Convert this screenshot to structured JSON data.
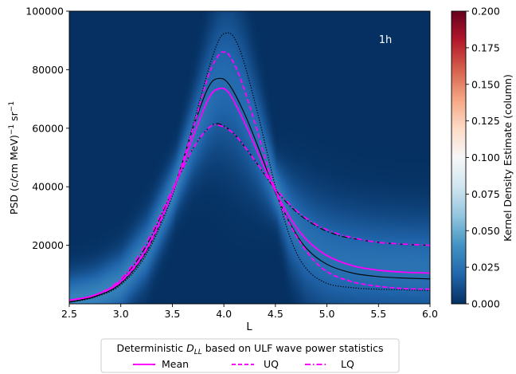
{
  "chart_data": {
    "type": "heatmap",
    "annotation": "1h",
    "xlabel": "L",
    "ylabel_parts": [
      "PSD (c/cm MeV)",
      "−1",
      " sr",
      "−1"
    ],
    "xlim": [
      2.5,
      6.0
    ],
    "ylim": [
      0,
      100000
    ],
    "xticks": [
      2.5,
      3.0,
      3.5,
      4.0,
      4.5,
      5.0,
      5.5,
      6.0
    ],
    "xtick_labels": [
      "2.5",
      "3.0",
      "3.5",
      "4.0",
      "4.5",
      "5.0",
      "5.5",
      "6.0"
    ],
    "yticks": [
      20000,
      40000,
      60000,
      80000,
      100000
    ],
    "ytick_labels": [
      "20000",
      "40000",
      "60000",
      "80000",
      "100000"
    ],
    "colorbar": {
      "label": "Kernel Density Estimate (column)",
      "range": [
        0.0,
        0.2
      ],
      "ticks": [
        0.0,
        0.025,
        0.05,
        0.075,
        0.1,
        0.125,
        0.15,
        0.175,
        0.2
      ],
      "tick_labels": [
        "0.000",
        "0.025",
        "0.050",
        "0.075",
        "0.100",
        "0.125",
        "0.150",
        "0.175",
        "0.200"
      ],
      "colormap": "RdBu_r"
    },
    "legend": {
      "title_parts": [
        "Deterministic ",
        "D",
        "LL",
        " based on ULF wave power statistics"
      ],
      "placement": "below",
      "entries": [
        {
          "label": "Mean",
          "style": "solid",
          "color": "#ff00ff"
        },
        {
          "label": "UQ",
          "style": "dashed",
          "color": "#ff00ff"
        },
        {
          "label": "LQ",
          "style": "dashdot",
          "color": "#ff00ff"
        }
      ]
    },
    "series": [
      {
        "role": "mean",
        "style": "solid",
        "color": "#ff00ff",
        "x": [
          2.5,
          2.75,
          3.0,
          3.25,
          3.5,
          3.7,
          3.85,
          3.95,
          4.05,
          4.2,
          4.35,
          4.5,
          4.65,
          4.8,
          5.0,
          5.25,
          5.5,
          5.75,
          6.0
        ],
        "y": [
          1200,
          3000,
          7800,
          19000,
          38000,
          57000,
          70000,
          73500,
          72000,
          62000,
          50000,
          38500,
          29000,
          22000,
          16500,
          13000,
          11500,
          10800,
          10500
        ]
      },
      {
        "role": "uq",
        "style": "dashed",
        "color": "#ff00ff",
        "x": [
          2.5,
          2.75,
          3.0,
          3.25,
          3.5,
          3.7,
          3.85,
          3.95,
          4.0,
          4.05,
          4.15,
          4.3,
          4.45,
          4.6,
          4.8,
          5.0,
          5.25,
          5.5,
          5.75,
          6.0
        ],
        "y": [
          1200,
          3000,
          7500,
          18500,
          38000,
          60000,
          78000,
          85000,
          86000,
          85000,
          78000,
          62000,
          44000,
          30000,
          18000,
          11000,
          7500,
          6000,
          5200,
          5000
        ]
      },
      {
        "role": "lq",
        "style": "dashdot",
        "color": "#ff00ff",
        "x": [
          2.5,
          2.75,
          3.0,
          3.25,
          3.5,
          3.7,
          3.85,
          3.95,
          4.1,
          4.3,
          4.5,
          4.7,
          4.9,
          5.1,
          5.3,
          5.5,
          5.75,
          6.0
        ],
        "y": [
          1200,
          3000,
          8500,
          21000,
          39000,
          53000,
          60000,
          61000,
          58000,
          49000,
          39500,
          32000,
          27000,
          24000,
          22200,
          21000,
          20400,
          20000
        ]
      },
      {
        "role": "kde-mean",
        "style": "solid",
        "color": "#000000",
        "x": [
          2.5,
          2.75,
          3.0,
          3.25,
          3.5,
          3.7,
          3.85,
          3.95,
          4.05,
          4.2,
          4.35,
          4.5,
          4.65,
          4.8,
          5.0,
          5.25,
          5.5,
          5.75,
          6.0
        ],
        "y": [
          600,
          2500,
          7000,
          18000,
          38000,
          60000,
          74000,
          77000,
          75000,
          65000,
          52000,
          38000,
          27000,
          19000,
          13500,
          10500,
          9300,
          8800,
          8500
        ]
      },
      {
        "role": "kde-uq",
        "style": "dotted",
        "color": "#000000",
        "x": [
          2.5,
          2.75,
          3.0,
          3.25,
          3.5,
          3.7,
          3.85,
          3.95,
          4.02,
          4.1,
          4.2,
          4.35,
          4.5,
          4.65,
          4.8,
          5.0,
          5.25,
          5.5,
          5.75,
          6.0
        ],
        "y": [
          500,
          2300,
          6500,
          17000,
          37000,
          61000,
          80000,
          90000,
          92500,
          91000,
          82000,
          62000,
          40000,
          22000,
          12000,
          7000,
          5500,
          5000,
          4800,
          4500
        ]
      },
      {
        "role": "kde-lq",
        "style": "dashdot",
        "color": "#000000",
        "x": [
          2.5,
          2.75,
          3.0,
          3.25,
          3.5,
          3.7,
          3.85,
          3.95,
          4.1,
          4.3,
          4.5,
          4.7,
          4.9,
          5.1,
          5.3,
          5.5,
          5.75,
          6.0
        ],
        "y": [
          600,
          2800,
          8000,
          20000,
          38500,
          53000,
          60000,
          61500,
          58000,
          49000,
          39000,
          31500,
          26500,
          23500,
          22000,
          21000,
          20300,
          20000
        ]
      }
    ]
  }
}
